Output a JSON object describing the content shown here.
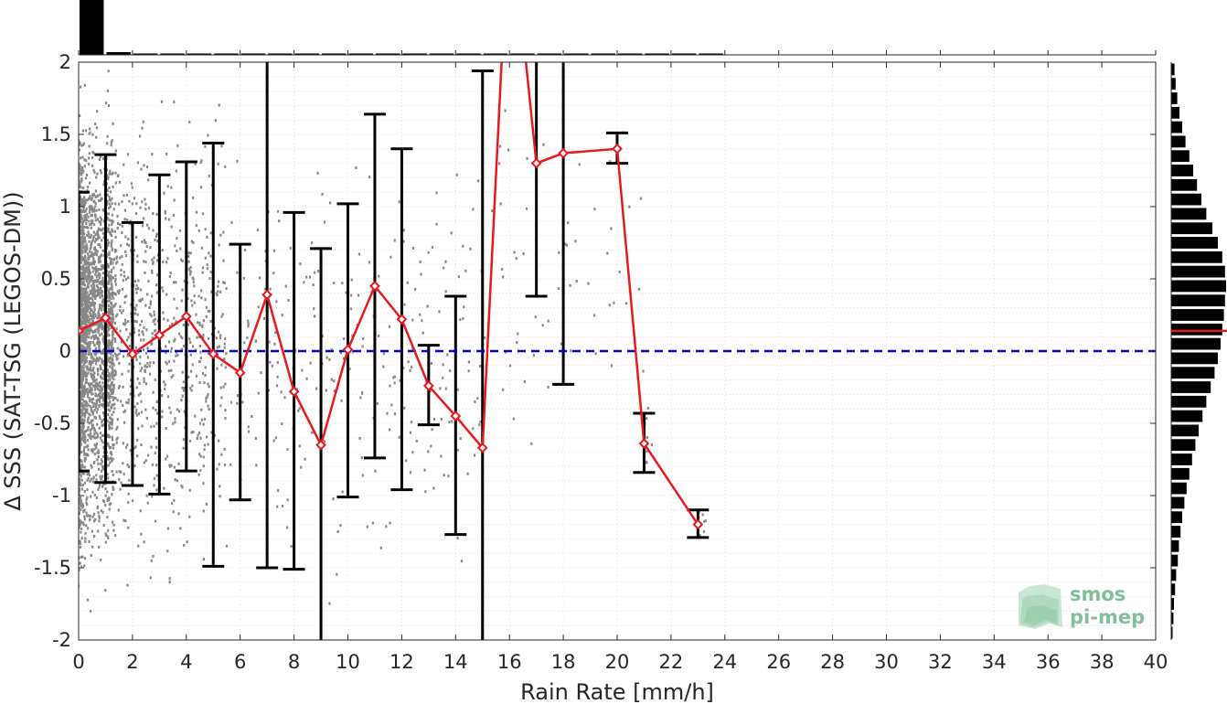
{
  "chart_data": {
    "type": "scatter",
    "title": "",
    "xlabel": "Rain Rate [mm/h]",
    "ylabel": "Δ SSS (SAT-TSG (LEGOS-DM))",
    "xlim": [
      0,
      40
    ],
    "ylim": [
      -2,
      2
    ],
    "x_ticks": [
      "0",
      "2",
      "4",
      "6",
      "8",
      "10",
      "12",
      "14",
      "16",
      "18",
      "20",
      "22",
      "24",
      "26",
      "28",
      "30",
      "32",
      "34",
      "36",
      "38",
      "40"
    ],
    "y_ticks": [
      "-2",
      "-1.5",
      "-1",
      "-0.5",
      "0",
      "0.5",
      "1",
      "1.5",
      "2"
    ],
    "grid": "dotted",
    "reference_line": {
      "y": 0,
      "style": "dashed",
      "color": "#0000dd"
    },
    "mean_series": {
      "color": "#e8181c",
      "marker": "diamond",
      "points": [
        {
          "x": 0,
          "y": 0.14
        },
        {
          "x": 1,
          "y": 0.23
        },
        {
          "x": 2,
          "y": -0.02
        },
        {
          "x": 3,
          "y": 0.11
        },
        {
          "x": 4,
          "y": 0.24
        },
        {
          "x": 5,
          "y": -0.02
        },
        {
          "x": 6,
          "y": -0.15
        },
        {
          "x": 7,
          "y": 0.39
        },
        {
          "x": 8,
          "y": -0.28
        },
        {
          "x": 9,
          "y": -0.65
        },
        {
          "x": 10,
          "y": 0.01
        },
        {
          "x": 11,
          "y": 0.45
        },
        {
          "x": 12,
          "y": 0.22
        },
        {
          "x": 13,
          "y": -0.24
        },
        {
          "x": 14,
          "y": -0.45
        },
        {
          "x": 15,
          "y": -0.67
        },
        {
          "x": 16,
          "y": 3.1
        },
        {
          "x": 17,
          "y": 1.3
        },
        {
          "x": 18,
          "y": 1.37
        },
        {
          "x": 20,
          "y": 1.4
        },
        {
          "x": 21,
          "y": -0.64
        },
        {
          "x": 23,
          "y": -1.2
        }
      ]
    },
    "error_bars": [
      {
        "x": 0,
        "lo": -0.83,
        "hi": 1.1
      },
      {
        "x": 1,
        "lo": -0.91,
        "hi": 1.36
      },
      {
        "x": 2,
        "lo": -0.93,
        "hi": 0.89
      },
      {
        "x": 3,
        "lo": -0.99,
        "hi": 1.22
      },
      {
        "x": 4,
        "lo": -0.83,
        "hi": 1.31
      },
      {
        "x": 5,
        "lo": -1.49,
        "hi": 1.44
      },
      {
        "x": 6,
        "lo": -1.03,
        "hi": 0.74
      },
      {
        "x": 7,
        "lo": -1.5,
        "hi": 2.3
      },
      {
        "x": 8,
        "lo": -1.51,
        "hi": 0.96
      },
      {
        "x": 9,
        "lo": -2.3,
        "hi": 0.71
      },
      {
        "x": 10,
        "lo": -1.01,
        "hi": 1.02
      },
      {
        "x": 11,
        "lo": -0.74,
        "hi": 1.64
      },
      {
        "x": 12,
        "lo": -0.96,
        "hi": 1.4
      },
      {
        "x": 13,
        "lo": -0.51,
        "hi": 0.04
      },
      {
        "x": 14,
        "lo": -1.27,
        "hi": 0.38
      },
      {
        "x": 15,
        "lo": -2.3,
        "hi": 1.94
      },
      {
        "x": 17,
        "lo": 0.38,
        "hi": 2.3
      },
      {
        "x": 18,
        "lo": -0.23,
        "hi": 2.3
      },
      {
        "x": 20,
        "lo": 1.3,
        "hi": 1.51
      },
      {
        "x": 21,
        "lo": -0.84,
        "hi": -0.43
      },
      {
        "x": 23,
        "lo": -1.29,
        "hi": -1.1
      }
    ],
    "scatter_color": "#888888",
    "marginal_x_histogram": {
      "bins_x": [
        0,
        1,
        2,
        3,
        4,
        5,
        6,
        7,
        8,
        9,
        10,
        11,
        12,
        13,
        14,
        15,
        16,
        17,
        18,
        19,
        20,
        21,
        22,
        23
      ],
      "relative_counts": [
        1.0,
        0.05,
        0.02,
        0.015,
        0.012,
        0.01,
        0.008,
        0.007,
        0.006,
        0.005,
        0.005,
        0.004,
        0.004,
        0.004,
        0.003,
        0.003,
        0.002,
        0.002,
        0.002,
        0.002,
        0.002,
        0.002,
        0.002,
        0.002
      ]
    },
    "marginal_y_histogram": {
      "bin_width": 0.1,
      "relative_counts": [
        0.02,
        0.04,
        0.05,
        0.07,
        0.09,
        0.12,
        0.14,
        0.17,
        0.2,
        0.24,
        0.28,
        0.33,
        0.38,
        0.44,
        0.5,
        0.57,
        0.64,
        0.72,
        0.79,
        0.85,
        0.9,
        0.93,
        0.96,
        0.98,
        1.0,
        0.98,
        0.93,
        0.85,
        0.75,
        0.64,
        0.55,
        0.47,
        0.4,
        0.33,
        0.26,
        0.2,
        0.15,
        0.11,
        0.08,
        0.06
      ],
      "mean_line_y": 0.14,
      "mean_line_color": "#e8181c"
    },
    "watermark": [
      "smos",
      "pi-mep"
    ]
  }
}
